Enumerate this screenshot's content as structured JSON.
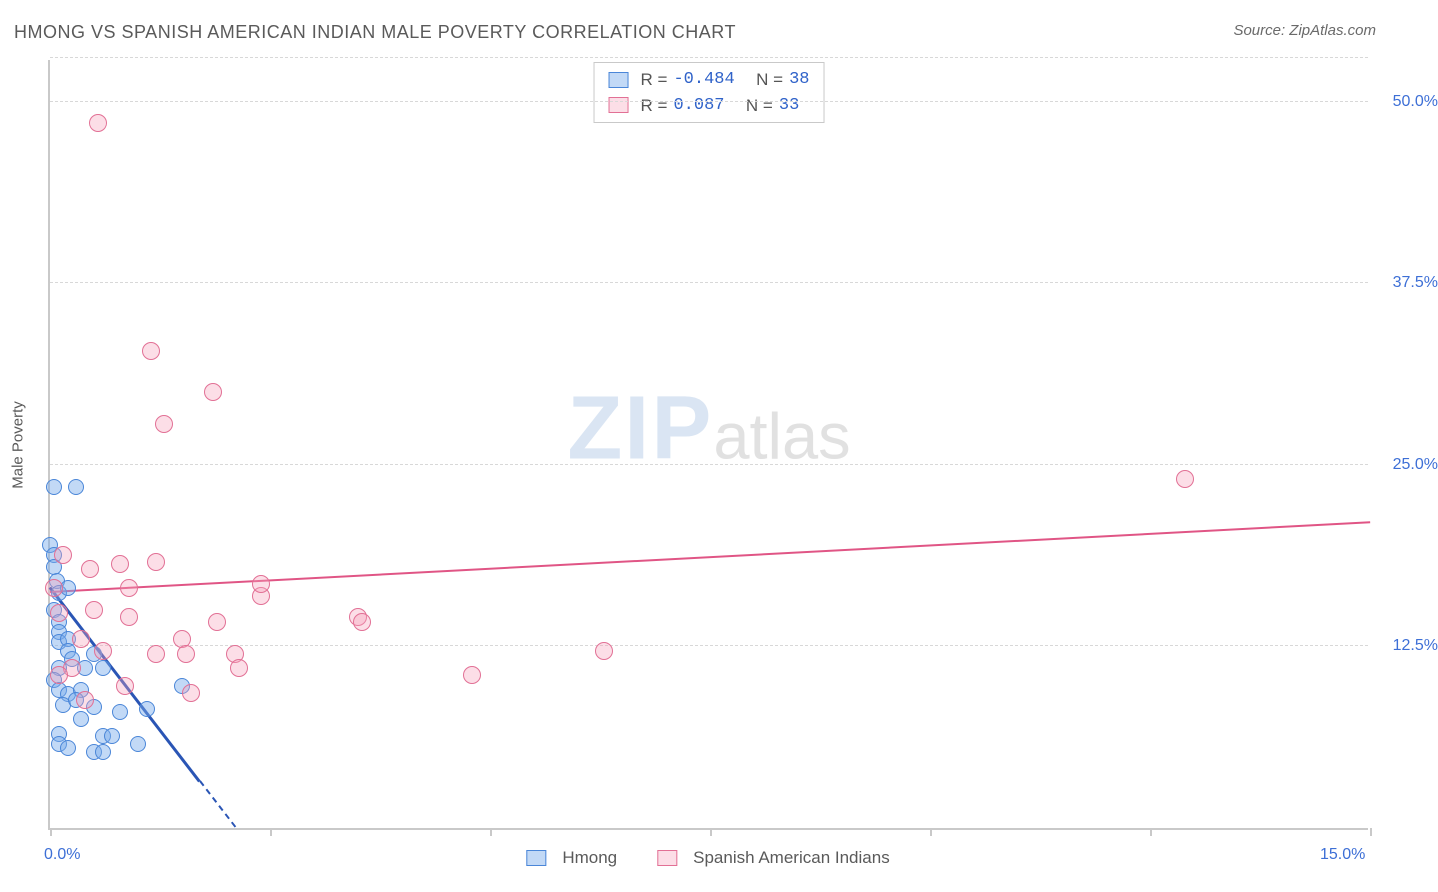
{
  "header": {
    "title": "HMONG VS SPANISH AMERICAN INDIAN MALE POVERTY CORRELATION CHART",
    "source": "Source: ZipAtlas.com"
  },
  "watermark": {
    "zip": "ZIP",
    "atlas": "atlas"
  },
  "chart": {
    "type": "scatter",
    "y_axis_label": "Male Poverty",
    "background_color": "#ffffff",
    "grid_color": "#d8d8d8",
    "axis_color": "#c9c9c9",
    "tick_label_color": "#3d6fd6",
    "xlim": [
      0,
      15
    ],
    "ylim": [
      0,
      53
    ],
    "x_ticks": [
      0,
      2.5,
      5,
      7.5,
      10,
      12.5,
      15
    ],
    "x_tick_labels": {
      "0": "0.0%",
      "15": "15.0%"
    },
    "y_gridlines": [
      12.5,
      25,
      37.5,
      50,
      53
    ],
    "y_tick_labels": {
      "12.5": "12.5%",
      "25": "25.0%",
      "37.5": "37.5%",
      "50": "50.0%"
    },
    "label_fontsize": 16,
    "marker_radius_blue": 8,
    "marker_radius_pink": 9,
    "series": [
      {
        "name": "Hmong",
        "color_fill": "rgba(120,170,235,0.45)",
        "color_stroke": "#4a86d8",
        "points": [
          [
            0.05,
            23.5
          ],
          [
            0.3,
            23.5
          ],
          [
            0.0,
            19.5
          ],
          [
            0.05,
            18.8
          ],
          [
            0.05,
            18.0
          ],
          [
            0.08,
            17.0
          ],
          [
            0.1,
            16.2
          ],
          [
            0.05,
            15.0
          ],
          [
            0.1,
            14.2
          ],
          [
            0.1,
            13.5
          ],
          [
            0.1,
            12.8
          ],
          [
            0.2,
            13.0
          ],
          [
            0.2,
            12.2
          ],
          [
            0.25,
            11.6
          ],
          [
            0.1,
            11.0
          ],
          [
            0.5,
            12.0
          ],
          [
            0.4,
            11.0
          ],
          [
            0.05,
            10.2
          ],
          [
            0.1,
            9.5
          ],
          [
            0.2,
            9.2
          ],
          [
            0.35,
            9.5
          ],
          [
            0.6,
            11.0
          ],
          [
            0.15,
            8.5
          ],
          [
            0.3,
            8.8
          ],
          [
            0.5,
            8.3
          ],
          [
            0.8,
            8.0
          ],
          [
            1.1,
            8.2
          ],
          [
            0.35,
            7.5
          ],
          [
            0.6,
            6.3
          ],
          [
            0.7,
            6.3
          ],
          [
            1.0,
            5.8
          ],
          [
            0.5,
            5.2
          ],
          [
            0.6,
            5.2
          ],
          [
            1.5,
            9.8
          ],
          [
            0.1,
            6.5
          ],
          [
            0.1,
            5.8
          ],
          [
            0.2,
            5.5
          ],
          [
            0.2,
            16.5
          ]
        ],
        "trend": {
          "x1": 0,
          "y1": 16.5,
          "x2": 2.1,
          "y2": 0,
          "color": "#2a55b5",
          "width": 2.5,
          "dash_after_x": 1.7
        }
      },
      {
        "name": "Spanish American Indians",
        "color_fill": "rgba(245,160,185,0.35)",
        "color_stroke": "#e27095",
        "points": [
          [
            0.55,
            48.5
          ],
          [
            1.15,
            32.8
          ],
          [
            1.3,
            27.8
          ],
          [
            1.85,
            30.0
          ],
          [
            12.9,
            24.0
          ],
          [
            0.15,
            18.8
          ],
          [
            0.05,
            16.5
          ],
          [
            0.45,
            17.8
          ],
          [
            0.8,
            18.2
          ],
          [
            1.2,
            18.3
          ],
          [
            0.1,
            14.8
          ],
          [
            0.5,
            15.0
          ],
          [
            0.35,
            13.0
          ],
          [
            0.9,
            14.5
          ],
          [
            1.5,
            13.0
          ],
          [
            1.9,
            14.2
          ],
          [
            2.4,
            16.0
          ],
          [
            2.4,
            16.8
          ],
          [
            3.5,
            14.5
          ],
          [
            3.55,
            14.2
          ],
          [
            0.6,
            12.2
          ],
          [
            1.2,
            12.0
          ],
          [
            1.55,
            12.0
          ],
          [
            2.1,
            12.0
          ],
          [
            2.15,
            11.0
          ],
          [
            0.25,
            11.0
          ],
          [
            0.1,
            10.5
          ],
          [
            0.85,
            9.8
          ],
          [
            1.6,
            9.3
          ],
          [
            4.8,
            10.5
          ],
          [
            0.4,
            8.8
          ],
          [
            6.3,
            12.2
          ],
          [
            0.9,
            16.5
          ]
        ],
        "trend": {
          "x1": 0,
          "y1": 16.2,
          "x2": 15,
          "y2": 21.0,
          "color": "#e05585",
          "width": 2,
          "dash_after_x": 15
        }
      }
    ],
    "r_legend": {
      "rows": [
        {
          "sw": "blue",
          "R_label": "R =",
          "R": "-0.484",
          "N_label": "N =",
          "N": "38"
        },
        {
          "sw": "pink",
          "R_label": "R =",
          "R": " 0.087",
          "N_label": "N =",
          "N": "33"
        }
      ]
    },
    "series_legend": [
      {
        "sw": "blue",
        "label": "Hmong"
      },
      {
        "sw": "pink",
        "label": "Spanish American Indians"
      }
    ]
  }
}
